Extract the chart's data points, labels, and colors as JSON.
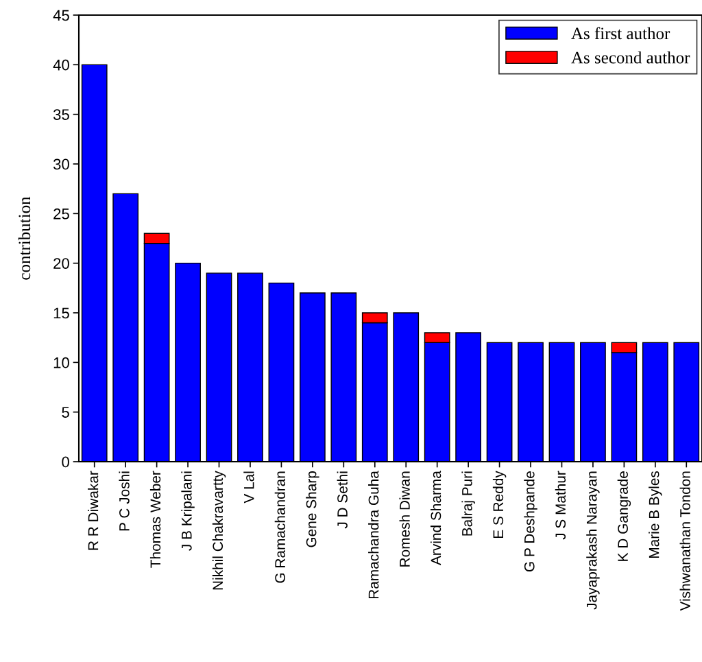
{
  "chart_data": {
    "type": "bar",
    "stacked": true,
    "ylabel": "contribution",
    "categories": [
      "R R Diwakar",
      "P C Joshi",
      "Thomas Weber",
      "J B Kripalani",
      "Nikhil Chakravartty",
      "V Lal",
      "G Ramachandran",
      "Gene Sharp",
      "J D Sethi",
      "Ramachandra Guha",
      "Romesh Diwan",
      "Arvind Sharma",
      "Balraj Puri",
      "E S Reddy",
      "G P Deshpande",
      "J S Mathur",
      "Jayaprakash Narayan",
      "K D Gangrade",
      "Marie B Byles",
      "Vishwanathan Tondon"
    ],
    "series": [
      {
        "name": "As first author",
        "color": "#0000ff",
        "values": [
          40,
          27,
          22,
          20,
          19,
          19,
          18,
          17,
          17,
          14,
          15,
          12,
          13,
          12,
          12,
          12,
          12,
          11,
          12,
          12
        ]
      },
      {
        "name": "As second author",
        "color": "#ff0000",
        "values": [
          null,
          null,
          1,
          null,
          null,
          null,
          null,
          null,
          null,
          1,
          null,
          1,
          null,
          null,
          null,
          null,
          null,
          1,
          null,
          null
        ]
      }
    ],
    "ylim": [
      0,
      45
    ],
    "yticks": [
      0,
      5,
      10,
      15,
      20,
      25,
      30,
      35,
      40,
      45
    ],
    "legend": "top right",
    "grid": false
  }
}
